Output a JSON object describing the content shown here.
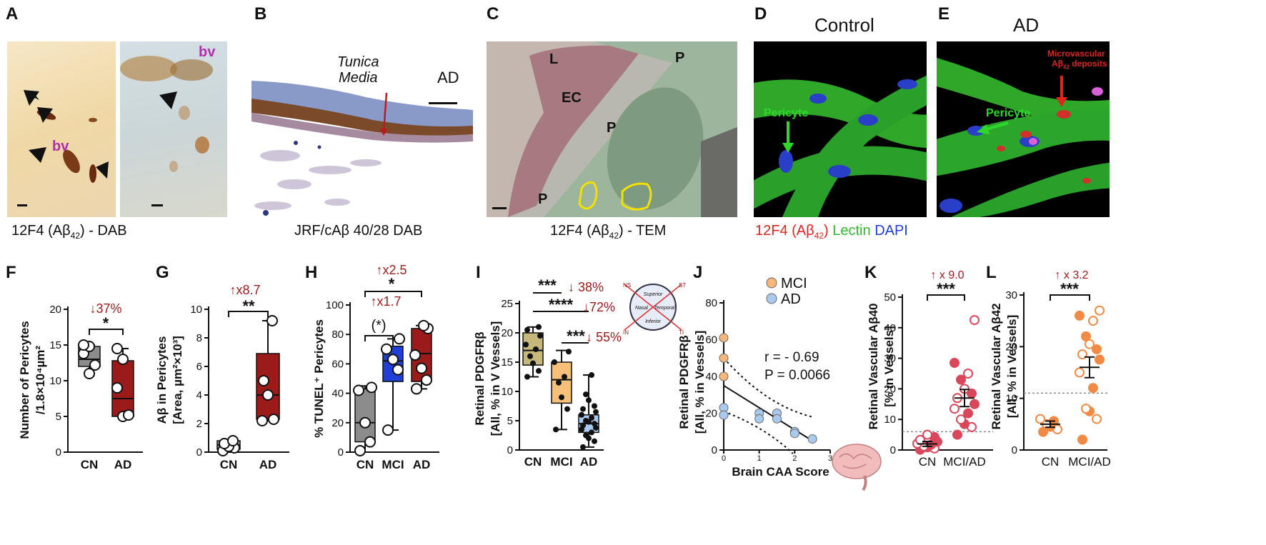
{
  "figure": {
    "panel_letters": [
      "A",
      "B",
      "C",
      "D",
      "E",
      "F",
      "G",
      "H",
      "I",
      "J",
      "K",
      "L"
    ],
    "A": {
      "bv1": "bv",
      "bv2": "bv",
      "caption": "12F4 (Aβ42) - DAB"
    },
    "B": {
      "label": "AD",
      "annotation_line1": "Tunica",
      "annotation_line2": "Media",
      "caption": "JRF/cAβ 40/28 DAB"
    },
    "C": {
      "labels": [
        "L",
        "EC",
        "P",
        "P",
        "P"
      ],
      "caption": "12F4 (Aβ42) - TEM"
    },
    "D": {
      "title": "Control",
      "annotation": "Pericyte"
    },
    "E": {
      "title": "AD",
      "annotation": "Pericyte",
      "annotation2_line1": "Microvascular",
      "annotation2_line2": "Aβ42 deposits"
    },
    "DE_caption": {
      "part1": "12F4 (Aβ42)",
      "part2": "Lectin",
      "part3": "DAPI"
    },
    "colors": {
      "dark_red": "#9b1b1b",
      "grey_box": "#8c8c8c",
      "blue_box": "#1f3fd6",
      "olive_box": "#c6b77a",
      "orange_box": "#f6c07a",
      "light_blue_box": "#a9c9ee",
      "mci_dot": "#f5b77a",
      "ad_dot": "#a9c9ee",
      "k_points": "#d9475a",
      "l_points": "#f08a45"
    }
  },
  "chart_data": [
    {
      "panel": "F",
      "type": "box",
      "ylabel_line1": "Number of Pericytes",
      "ylabel_line2": "/1.8×10⁴µm²",
      "ylim": [
        0,
        20
      ],
      "yticks": [
        0,
        5,
        10,
        15,
        20
      ],
      "categories": [
        "CN",
        "AD"
      ],
      "boxes": [
        {
          "name": "CN",
          "q1": 12.0,
          "median": 13.0,
          "q3": 14.8,
          "min": 11.0,
          "max": 15.0,
          "points": [
            11.0,
            12.2,
            13.8,
            14.8,
            15.0
          ]
        },
        {
          "name": "AD",
          "q1": 5.0,
          "median": 7.5,
          "q3": 12.8,
          "min": 5.0,
          "max": 14.5,
          "points": [
            5.0,
            5.2,
            9.0,
            13.0,
            14.5
          ]
        }
      ],
      "significance": "*",
      "fold_change": "↓37%"
    },
    {
      "panel": "G",
      "type": "box",
      "ylabel_line1": "Aβ in Pericytes",
      "ylabel_line2": "[Area, µm²×10³]",
      "ylim": [
        0,
        10
      ],
      "yticks": [
        0,
        2,
        4,
        6,
        8,
        10
      ],
      "categories": [
        "CN",
        "AD"
      ],
      "boxes": [
        {
          "name": "CN",
          "q1": 0.2,
          "median": 0.5,
          "q3": 0.8,
          "min": 0.1,
          "max": 0.8,
          "points": [
            0.1,
            0.3,
            0.4,
            0.6,
            0.8
          ]
        },
        {
          "name": "AD",
          "q1": 2.3,
          "median": 4.0,
          "q3": 6.9,
          "min": 2.2,
          "max": 9.2,
          "points": [
            2.2,
            2.3,
            4.0,
            5.0,
            9.2
          ]
        }
      ],
      "significance": "**",
      "fold_change": "↑x8.7"
    },
    {
      "panel": "H",
      "type": "box",
      "ylabel": "% TUNEL⁺ Pericytes",
      "ylim": [
        0,
        100
      ],
      "yticks": [
        0,
        20,
        40,
        60,
        80,
        100
      ],
      "categories": [
        "CN",
        "MCI",
        "AD"
      ],
      "boxes": [
        {
          "name": "CN",
          "q1": 7,
          "median": 20,
          "q3": 43,
          "min": 0,
          "max": 45,
          "points": [
            1,
            7,
            20,
            42,
            44
          ]
        },
        {
          "name": "MCI",
          "q1": 48,
          "median": 62,
          "q3": 72,
          "min": 15,
          "max": 77,
          "points": [
            15,
            56,
            63,
            70,
            77
          ]
        },
        {
          "name": "AD",
          "q1": 48,
          "median": 67,
          "q3": 84,
          "min": 43,
          "max": 86,
          "points": [
            43,
            49,
            57,
            66,
            84,
            86
          ]
        }
      ],
      "significance": [
        "(*)",
        "*"
      ],
      "fold_change": [
        "↑x1.7",
        "↑x2.5"
      ]
    },
    {
      "panel": "I",
      "type": "box",
      "ylabel_line1": "Retinal PDGFRβ",
      "ylabel_line2": "[All, % in V Vessels]",
      "ylim": [
        0,
        25
      ],
      "yticks": [
        0,
        5,
        10,
        15,
        20,
        25
      ],
      "categories": [
        "CN",
        "MCI",
        "AD"
      ],
      "boxes": [
        {
          "name": "CN",
          "q1": 14.5,
          "median": 17.0,
          "q3": 20.0,
          "min": 12.5,
          "max": 21.0,
          "points": [
            12.5,
            13.5,
            14.8,
            16.0,
            17.2,
            18.0,
            19.5,
            20.5,
            21.0
          ]
        },
        {
          "name": "MCI",
          "q1": 8.0,
          "median": 12.0,
          "q3": 15.0,
          "min": 3.5,
          "max": 17.0,
          "points": [
            3.5,
            7.0,
            9.0,
            11.5,
            12.5,
            15.0,
            16.8
          ]
        },
        {
          "name": "AD",
          "q1": 3.0,
          "median": 4.5,
          "q3": 6.0,
          "min": 0.5,
          "max": 12.8,
          "points": [
            0.5,
            1.5,
            2.0,
            2.5,
            3.0,
            3.5,
            3.8,
            4.2,
            4.5,
            4.8,
            5.0,
            5.5,
            6.0,
            6.5,
            7.0,
            7.5,
            8.5,
            9.5,
            12.8
          ]
        }
      ],
      "significance": [
        "***",
        "****",
        "***"
      ],
      "fold_change": [
        "↓ 38%",
        "↓72%",
        "↓ 55%"
      ],
      "inset_labels": [
        "Superior",
        "Temporal",
        "Inferior",
        "Nasal",
        "NS",
        "ST",
        "IN",
        "TI"
      ]
    },
    {
      "panel": "J",
      "type": "scatter",
      "xlabel": "Brain CAA Score",
      "ylabel_line1": "Retinal PDGFRβ",
      "ylabel_line2": "[All, % in Vessels]",
      "xlim": [
        0,
        3
      ],
      "ylim": [
        0,
        80
      ],
      "xticks": [
        0,
        1,
        2,
        3
      ],
      "yticks": [
        0,
        20,
        40,
        60,
        80
      ],
      "series": [
        {
          "name": "MCI",
          "points": [
            [
              0,
              61
            ],
            [
              0,
              50
            ],
            [
              0,
              40
            ]
          ]
        },
        {
          "name": "AD",
          "points": [
            [
              0,
              23
            ],
            [
              0,
              19
            ],
            [
              1,
              20
            ],
            [
              1,
              17
            ],
            [
              1.5,
              20
            ],
            [
              1.5,
              17
            ],
            [
              2,
              10
            ],
            [
              2,
              9
            ],
            [
              2.5,
              6
            ]
          ]
        }
      ],
      "regression": {
        "x": [
          0,
          2.5
        ],
        "y": [
          35,
          5
        ]
      },
      "stats": {
        "r": "r = - 0.69",
        "p": "P = 0.0066"
      },
      "legend": "top-right"
    },
    {
      "panel": "K",
      "type": "scatter_mean_sem",
      "ylabel_line1": "Retinal Vascular Aβ40",
      "ylabel_line2": "[% in Vessels]",
      "ylim": [
        0,
        50
      ],
      "yticks": [
        0,
        10,
        20,
        30,
        40,
        50
      ],
      "categories": [
        "CN",
        "MCI/AD"
      ],
      "groups": [
        {
          "name": "CN",
          "mean": 2.0,
          "sem": 0.8,
          "points": [
            0.1,
            0.5,
            0.9,
            1.2,
            1.7,
            2.1,
            2.7,
            3.3,
            4.2,
            5.0
          ]
        },
        {
          "name": "MCI/AD",
          "mean": 17.0,
          "sem": 2.8,
          "points": [
            5.0,
            7.5,
            8.5,
            10.0,
            12.0,
            13.5,
            15.0,
            17.0,
            18.5,
            20.0,
            23.0,
            25.0,
            28.5,
            42.5
          ]
        }
      ],
      "threshold": 6,
      "significance": "***",
      "fold_change": "↑ x 9.0"
    },
    {
      "panel": "L",
      "type": "scatter_mean_sem",
      "ylabel_line1": "Retinal Vascular Aβ42",
      "ylabel_line2": "[All, % in Vessels]",
      "ylim": [
        0,
        30
      ],
      "yticks": [
        0,
        10,
        20,
        30
      ],
      "categories": [
        "CN",
        "MCI/AD"
      ],
      "groups": [
        {
          "name": "CN",
          "mean": 5.0,
          "sem": 0.6,
          "points": [
            3.5,
            4.0,
            4.5,
            5.0,
            5.6,
            6.0
          ]
        },
        {
          "name": "MCI/AD",
          "mean": 16.0,
          "sem": 2.0,
          "points": [
            2.0,
            6.0,
            7.5,
            8.0,
            12.0,
            15.0,
            17.5,
            18.5,
            19.5,
            20.5,
            22.0,
            25.0,
            26.0,
            27.0
          ]
        }
      ],
      "threshold": 11,
      "significance": "***",
      "fold_change": "↑ x 3.2"
    }
  ]
}
